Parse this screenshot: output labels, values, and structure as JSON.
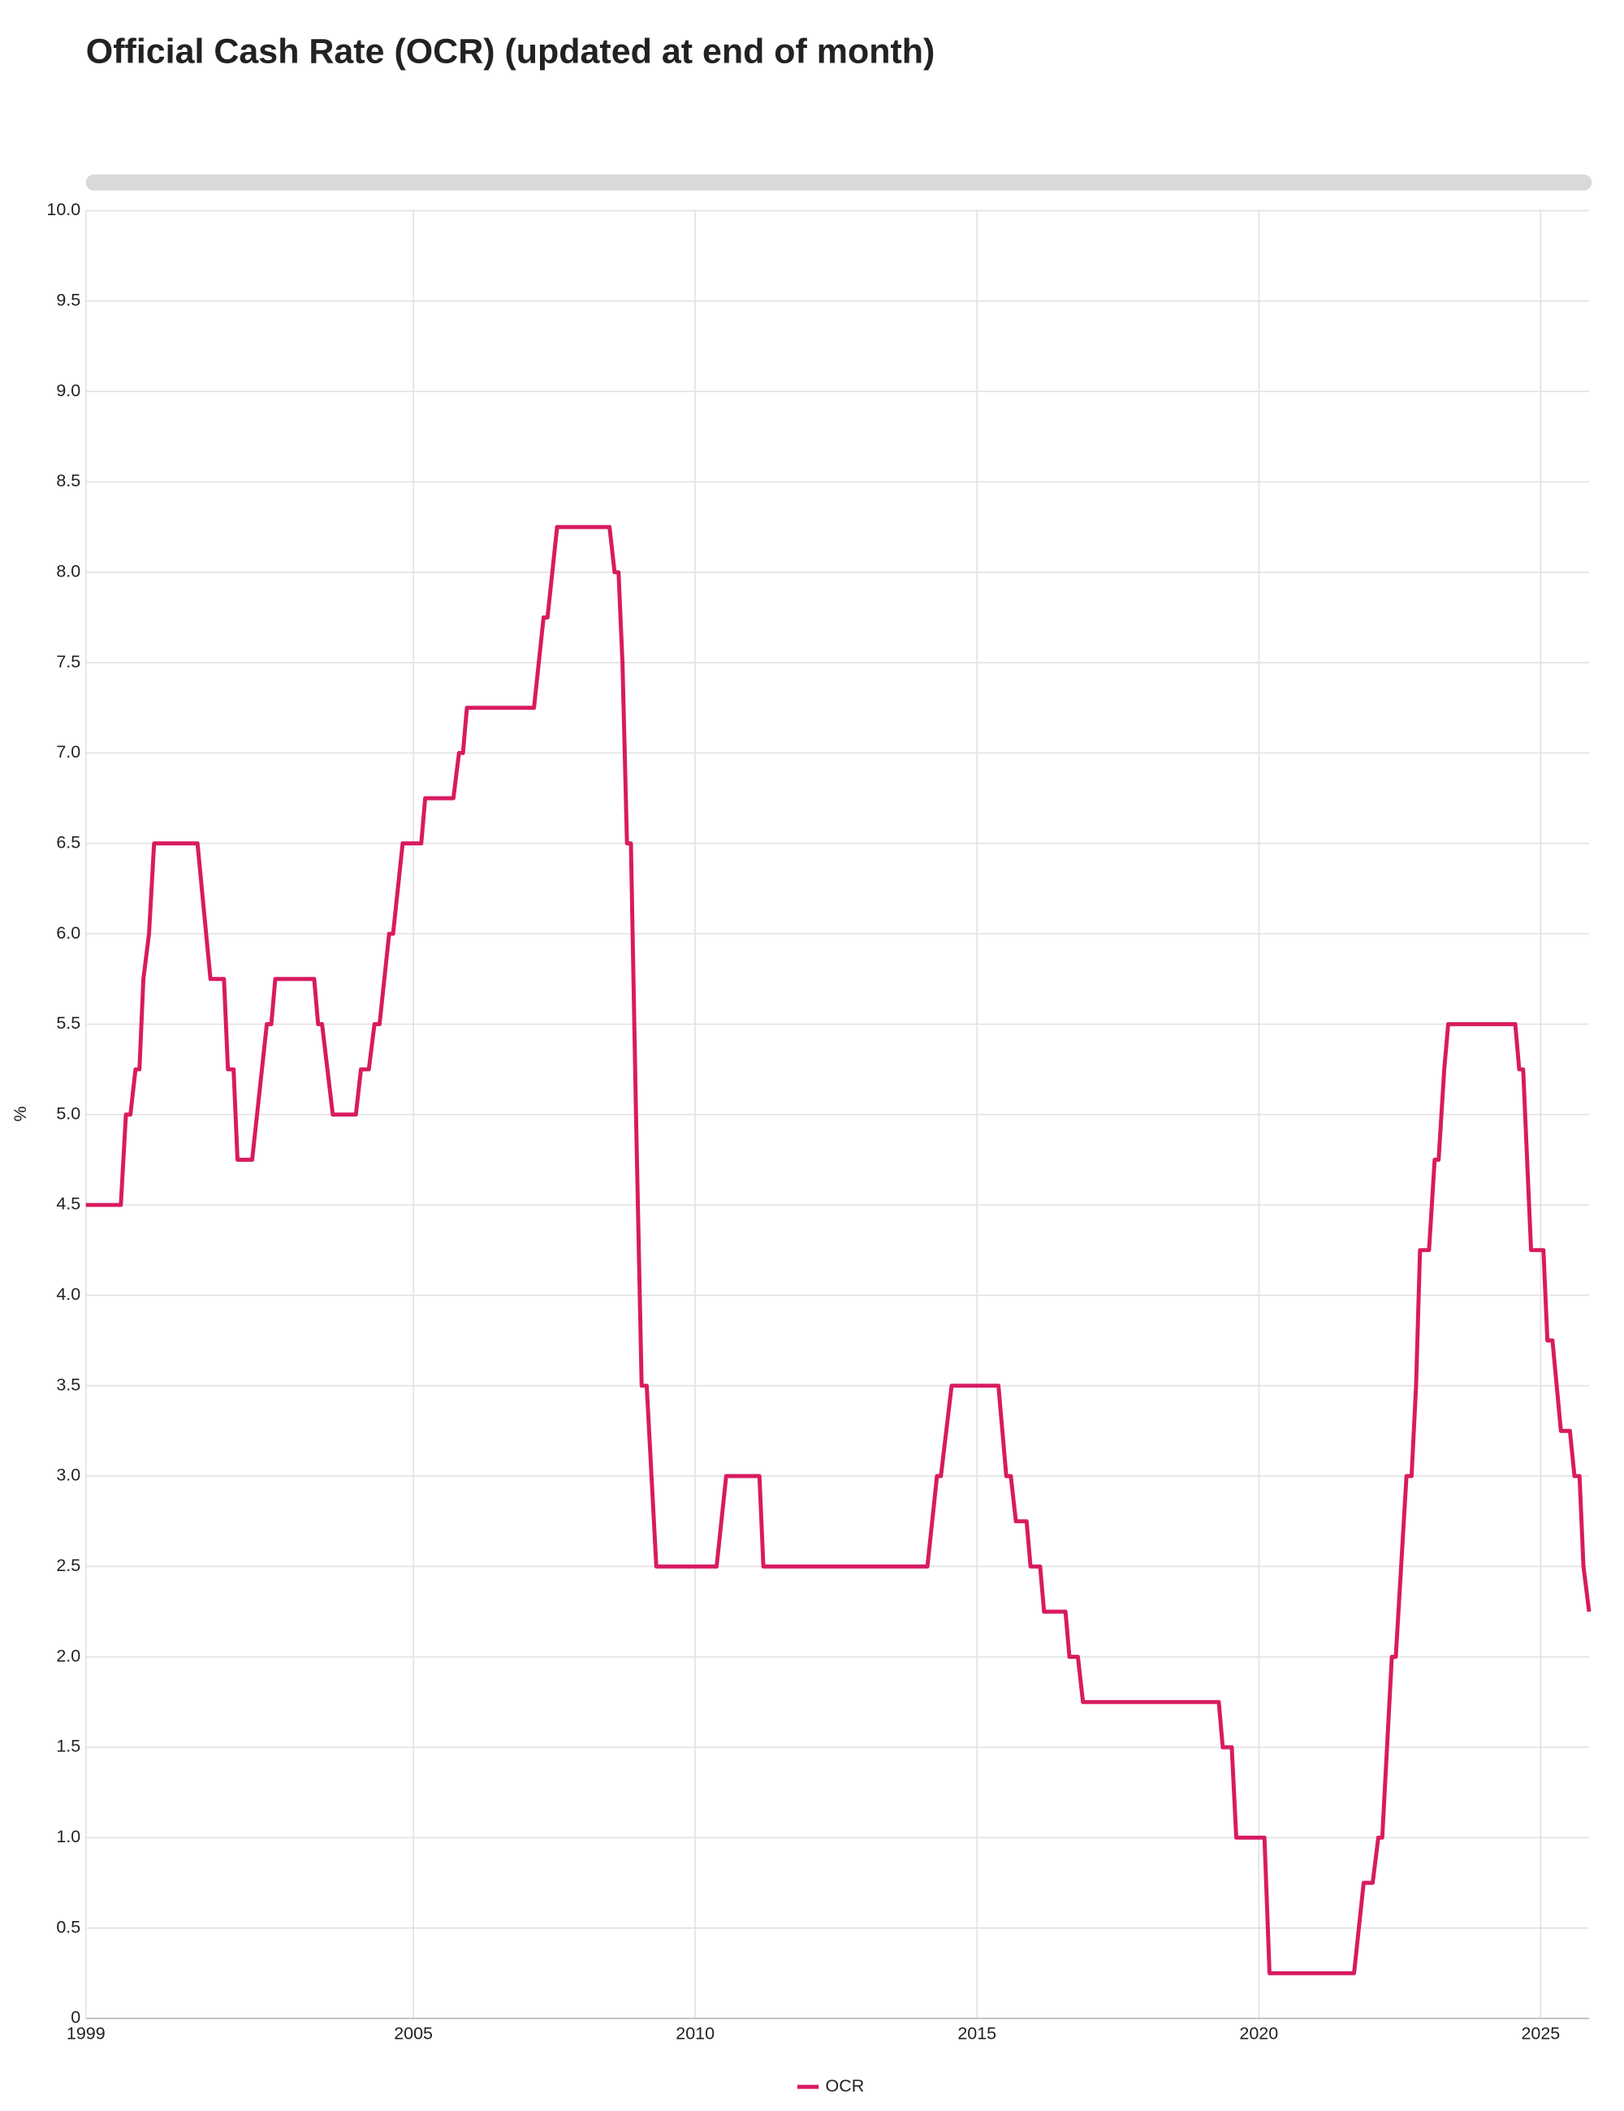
{
  "chart_data": {
    "type": "line",
    "title": "Official Cash Rate (OCR) (updated at end of month)",
    "y_label": "%",
    "x": [
      1999.19,
      1999.81,
      1999.9,
      1999.98,
      2000.07,
      2000.14,
      2000.21,
      2000.31,
      2000.4,
      2001.17,
      2001.4,
      2001.64,
      2001.71,
      2001.81,
      2001.88,
      2002.14,
      2002.4,
      2002.48,
      2002.55,
      2003.24,
      2003.31,
      2003.38,
      2003.57,
      2003.98,
      2004.07,
      2004.21,
      2004.31,
      2004.4,
      2004.57,
      2004.64,
      2004.81,
      2005.14,
      2005.21,
      2005.71,
      2005.81,
      2005.88,
      2005.95,
      2007.14,
      2007.31,
      2007.38,
      2007.55,
      2008.48,
      2008.57,
      2008.64,
      2008.71,
      2008.79,
      2008.86,
      2008.95,
      2009.05,
      2009.14,
      2009.31,
      2010.38,
      2010.55,
      2011.14,
      2011.21,
      2014.12,
      2014.29,
      2014.36,
      2014.55,
      2015.38,
      2015.52,
      2015.6,
      2015.69,
      2015.88,
      2015.95,
      2016.12,
      2016.19,
      2016.57,
      2016.64,
      2016.79,
      2016.88,
      2019.29,
      2019.36,
      2019.52,
      2019.6,
      2020.1,
      2020.19,
      2021.69,
      2021.86,
      2022.02,
      2022.12,
      2022.19,
      2022.36,
      2022.43,
      2022.62,
      2022.71,
      2022.79,
      2022.86,
      2023.02,
      2023.12,
      2023.19,
      2023.29,
      2023.36,
      2024.55,
      2024.62,
      2024.69,
      2024.83,
      2025.05,
      2025.12,
      2025.21,
      2025.36,
      2025.52,
      2025.6,
      2025.69,
      2025.76,
      2025.86
    ],
    "series": [
      {
        "name": "OCR",
        "color": "#d81b60",
        "values": [
          4.5,
          4.5,
          5.0,
          5.0,
          5.25,
          5.25,
          5.75,
          6.0,
          6.5,
          6.5,
          5.75,
          5.75,
          5.25,
          5.25,
          4.75,
          4.75,
          5.5,
          5.5,
          5.75,
          5.75,
          5.5,
          5.5,
          5.0,
          5.0,
          5.25,
          5.25,
          5.5,
          5.5,
          6.0,
          6.0,
          6.5,
          6.5,
          6.75,
          6.75,
          7.0,
          7.0,
          7.25,
          7.25,
          7.75,
          7.75,
          8.25,
          8.25,
          8.0,
          8.0,
          7.5,
          6.5,
          6.5,
          5.0,
          3.5,
          3.5,
          2.5,
          2.5,
          3.0,
          3.0,
          2.5,
          2.5,
          3.0,
          3.0,
          3.5,
          3.5,
          3.0,
          3.0,
          2.75,
          2.75,
          2.5,
          2.5,
          2.25,
          2.25,
          2.0,
          2.0,
          1.75,
          1.75,
          1.5,
          1.5,
          1.0,
          1.0,
          0.25,
          0.25,
          0.75,
          0.75,
          1.0,
          1.0,
          2.0,
          2.0,
          3.0,
          3.0,
          3.5,
          4.25,
          4.25,
          4.75,
          4.75,
          5.25,
          5.5,
          5.5,
          5.25,
          5.25,
          4.25,
          4.25,
          3.75,
          3.75,
          3.25,
          3.25,
          3.0,
          3.0,
          2.5,
          2.25
        ]
      }
    ],
    "xlim": [
      1999.19,
      2025.86
    ],
    "xticks": [
      {
        "value": 1999.19,
        "label": "1999"
      },
      2005,
      2010,
      2015,
      2020,
      2025
    ],
    "ylim": [
      0,
      10
    ],
    "yticks": [
      0,
      0.5,
      {
        "value": 1,
        "label": "1.0"
      },
      1.5,
      {
        "value": 2,
        "label": "2.0"
      },
      2.5,
      {
        "value": 3,
        "label": "3.0"
      },
      3.5,
      {
        "value": 4,
        "label": "4.0"
      },
      4.5,
      {
        "value": 5,
        "label": "5.0"
      },
      5.5,
      {
        "value": 6,
        "label": "6.0"
      },
      6.5,
      {
        "value": 7,
        "label": "7.0"
      },
      7.5,
      {
        "value": 8,
        "label": "8.0"
      },
      8.5,
      {
        "value": 9,
        "label": "9.0"
      },
      9.5,
      {
        "value": 10,
        "label": "10.0"
      }
    ],
    "grid": true,
    "legend": "bottom"
  }
}
